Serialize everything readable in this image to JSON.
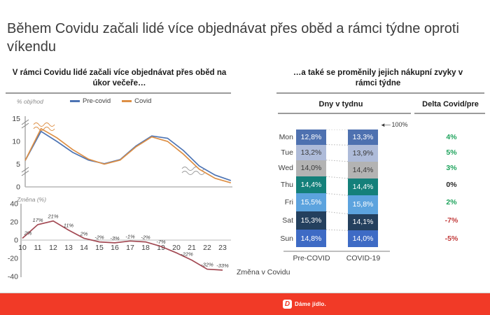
{
  "slide": {
    "title": "Během Covidu začali lidé více objednávat přes oběd a rámci týdne oproti víkendu"
  },
  "left_panel": {
    "subtitle": "V rámci Covidu lidé začali více objednávat přes oběd na úkor večeře…"
  },
  "right_panel": {
    "subtitle": "…a také se proměnily jejich nákupní zvyky v rámci týdne",
    "group_header": "Dny v tydnu",
    "delta_header": "Delta Covid/pre",
    "annotation": {
      "arrow_icon": "◄—",
      "label": "100%"
    }
  },
  "footer": {
    "brand_letter": "D",
    "brand_name": "Dáme jídlo.",
    "bar_color": "#f13a27",
    "brand_red": "#f13a27"
  },
  "colors": {
    "delta_positive": "#1ea35c",
    "delta_negative": "#c23b3b",
    "delta_neutral": "#262626",
    "grid": "#c8c8c8",
    "axis": "#808080"
  },
  "chart_data": [
    {
      "type": "line",
      "title": "V rámci Covidu lidé začali více objednávat přes oběd na úkor večeře…",
      "ylabel": "% obj/hod",
      "xlabel": "",
      "x": [
        10,
        11,
        12,
        13,
        14,
        15,
        16,
        17,
        18,
        19,
        20,
        21,
        22,
        23
      ],
      "series": [
        {
          "name": "Pre-covid",
          "color": "#4d74b4",
          "values": [
            5.8,
            12.2,
            10.0,
            7.6,
            5.9,
            5.1,
            6.0,
            9.0,
            11.2,
            10.7,
            8.0,
            4.6,
            2.6,
            1.4
          ]
        },
        {
          "name": "Covid",
          "color": "#dd8f45",
          "values": [
            5.8,
            12.8,
            10.8,
            8.2,
            6.1,
            5.0,
            5.9,
            8.8,
            11.0,
            10.0,
            7.2,
            3.9,
            1.9,
            0.9
          ]
        }
      ],
      "yticks": [
        0,
        5,
        10,
        15
      ],
      "ylim": [
        0,
        15
      ],
      "legend_position": "top",
      "axis_breaks": true,
      "grid": false
    },
    {
      "type": "line",
      "title": "Změna v Covidu",
      "ylabel": "Změna (%)",
      "xlabel": "",
      "x": [
        10,
        11,
        12,
        13,
        14,
        15,
        16,
        17,
        18,
        19,
        20,
        21,
        22,
        23
      ],
      "series": [
        {
          "name": "Změna v Covidu",
          "color": "#a34a54",
          "values": [
            2,
            17,
            21,
            11,
            2,
            -2,
            -3,
            -1,
            -2,
            -7,
            -14,
            -22,
            -32,
            -33
          ]
        }
      ],
      "point_labels": [
        "2%",
        "17%",
        "21%",
        "11%",
        "2%",
        "-2%",
        "-3%",
        "-1%",
        "-2%",
        "-7%",
        "",
        "-22%",
        "-32%",
        "-33%"
      ],
      "yticks": [
        -40,
        -20,
        0,
        20,
        40
      ],
      "ylim": [
        -40,
        40
      ],
      "grid": false
    },
    {
      "type": "bar",
      "subtype": "stacked-100",
      "title": "Dny v tydnu",
      "categories": [
        "Mon",
        "Tue",
        "Wed",
        "Thu",
        "Fri",
        "Sat",
        "Sun"
      ],
      "series": [
        {
          "name": "Pre-COVID",
          "values": [
            12.8,
            13.2,
            14.0,
            14.4,
            15.5,
            15.3,
            14.8
          ]
        },
        {
          "name": "COVID-19",
          "values": [
            13.3,
            13.9,
            14.4,
            14.4,
            15.8,
            14.1,
            14.0
          ]
        }
      ],
      "value_labels": {
        "pre": [
          "12,8%",
          "13,2%",
          "14,0%",
          "14,4%",
          "15,5%",
          "15,3%",
          "14,8%"
        ],
        "covid": [
          "13,3%",
          "13,9%",
          "14,4%",
          "14,4%",
          "15,8%",
          "14,1%",
          "14,0%"
        ]
      },
      "deltas": [
        {
          "label": "4%",
          "tone": "positive"
        },
        {
          "label": "5%",
          "tone": "positive"
        },
        {
          "label": "3%",
          "tone": "positive"
        },
        {
          "label": "0%",
          "tone": "neutral"
        },
        {
          "label": "2%",
          "tone": "positive"
        },
        {
          "label": "-7%",
          "tone": "negative"
        },
        {
          "label": "-5%",
          "tone": "negative"
        }
      ],
      "row_colors": [
        "#4e71b0",
        "#aebbd9",
        "#b3b3b3",
        "#14807a",
        "#5ca3de",
        "#24405e",
        "#3e6bc5"
      ],
      "row_text_colors": [
        "#ffffff",
        "#3a3a3a",
        "#3a3a3a",
        "#ffffff",
        "#ffffff",
        "#ffffff",
        "#ffffff"
      ],
      "total_annotation": "100%"
    }
  ]
}
